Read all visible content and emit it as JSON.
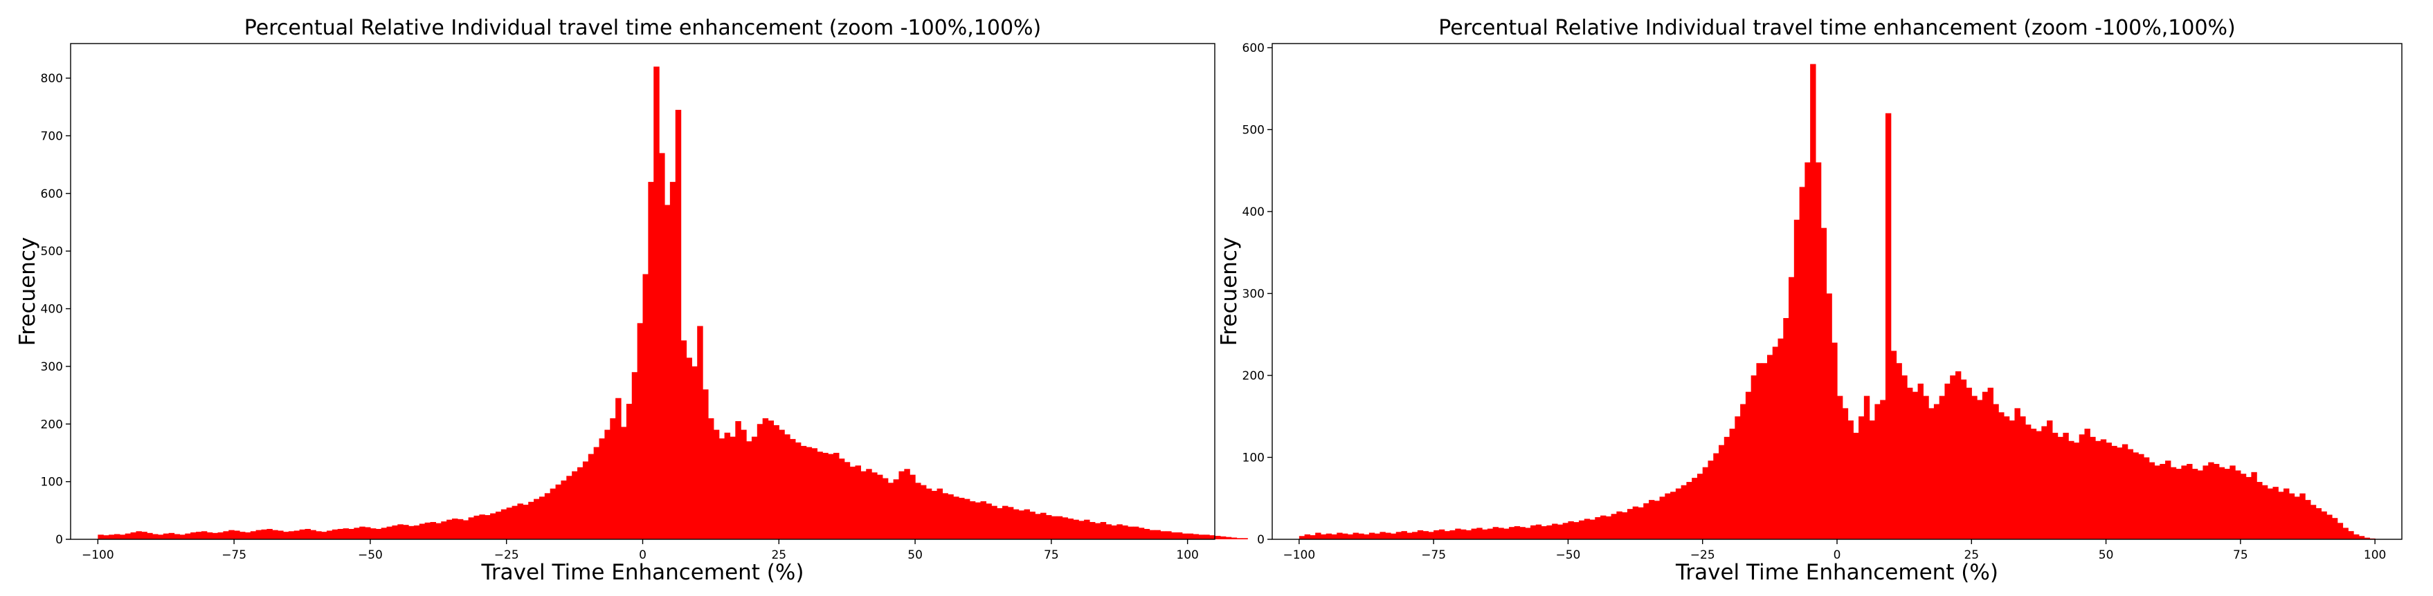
{
  "chart_data": [
    {
      "type": "bar",
      "title": "Percentual Relative Individual travel time enhancement (zoom -100%,100%)",
      "xlabel": "Travel Time Enhancement (%)",
      "ylabel": "Frecuency",
      "xlim": [
        -105,
        105
      ],
      "ylim": [
        0,
        860
      ],
      "xticks": [
        -100,
        -75,
        -50,
        -25,
        0,
        25,
        50,
        75,
        100
      ],
      "yticks": [
        0,
        100,
        200,
        300,
        400,
        500,
        600,
        700,
        800
      ],
      "bar_color": "#ff0000",
      "bin_width": 1,
      "bin_start": -100,
      "values": [
        8,
        7,
        8,
        9,
        8,
        10,
        12,
        14,
        13,
        11,
        9,
        8,
        10,
        11,
        9,
        8,
        10,
        12,
        13,
        14,
        12,
        11,
        12,
        14,
        16,
        15,
        13,
        12,
        14,
        16,
        17,
        18,
        16,
        15,
        13,
        14,
        15,
        17,
        18,
        16,
        14,
        13,
        15,
        17,
        18,
        19,
        18,
        20,
        22,
        21,
        19,
        18,
        20,
        22,
        24,
        26,
        25,
        23,
        24,
        27,
        29,
        30,
        28,
        31,
        34,
        36,
        35,
        33,
        38,
        41,
        43,
        42,
        45,
        48,
        52,
        55,
        58,
        62,
        60,
        65,
        70,
        74,
        80,
        88,
        95,
        102,
        110,
        118,
        125,
        135,
        148,
        160,
        175,
        190,
        210,
        245,
        195,
        235,
        290,
        375,
        460,
        620,
        820,
        670,
        580,
        620,
        745,
        345,
        315,
        300,
        370,
        260,
        210,
        190,
        175,
        185,
        178,
        205,
        190,
        170,
        178,
        200,
        210,
        206,
        198,
        190,
        182,
        174,
        168,
        162,
        160,
        158,
        152,
        150,
        148,
        150,
        140,
        134,
        126,
        128,
        118,
        122,
        116,
        112,
        106,
        98,
        104,
        118,
        122,
        112,
        98,
        94,
        88,
        84,
        88,
        80,
        78,
        74,
        72,
        70,
        66,
        64,
        66,
        62,
        58,
        54,
        58,
        56,
        52,
        50,
        52,
        48,
        44,
        46,
        42,
        40,
        40,
        38,
        36,
        34,
        32,
        34,
        30,
        28,
        30,
        26,
        24,
        26,
        24,
        22,
        22,
        20,
        18,
        16,
        16,
        14,
        14,
        12,
        12,
        10,
        10,
        9,
        8,
        8,
        7,
        6,
        5,
        4,
        3,
        2,
        2
      ]
    },
    {
      "type": "bar",
      "title": "Percentual Relative Individual travel time enhancement (zoom -100%,100%)",
      "xlabel": "Travel Time Enhancement (%)",
      "ylabel": "Frecuency",
      "xlim": [
        -105,
        105
      ],
      "ylim": [
        0,
        605
      ],
      "xticks": [
        -100,
        -75,
        -50,
        -25,
        0,
        25,
        50,
        75,
        100
      ],
      "yticks": [
        0,
        100,
        200,
        300,
        400,
        500,
        600
      ],
      "bar_color": "#ff0000",
      "bin_width": 1,
      "bin_start": -100,
      "values": [
        4,
        6,
        5,
        8,
        6,
        7,
        6,
        8,
        7,
        6,
        8,
        7,
        6,
        8,
        7,
        9,
        8,
        7,
        9,
        10,
        8,
        9,
        11,
        10,
        9,
        11,
        12,
        10,
        11,
        13,
        12,
        11,
        13,
        14,
        12,
        13,
        15,
        14,
        13,
        15,
        16,
        15,
        14,
        17,
        18,
        16,
        17,
        19,
        18,
        20,
        22,
        21,
        23,
        25,
        24,
        27,
        29,
        28,
        31,
        34,
        33,
        37,
        40,
        39,
        44,
        48,
        47,
        52,
        56,
        58,
        62,
        66,
        70,
        75,
        80,
        88,
        96,
        105,
        115,
        125,
        135,
        150,
        165,
        180,
        200,
        215,
        215,
        225,
        235,
        245,
        270,
        320,
        390,
        430,
        460,
        580,
        460,
        380,
        300,
        240,
        175,
        160,
        145,
        130,
        150,
        175,
        145,
        165,
        170,
        520,
        230,
        215,
        200,
        185,
        180,
        190,
        175,
        160,
        165,
        175,
        190,
        200,
        205,
        195,
        185,
        175,
        170,
        180,
        185,
        165,
        155,
        150,
        145,
        160,
        150,
        140,
        135,
        132,
        138,
        145,
        130,
        125,
        130,
        120,
        118,
        128,
        135,
        125,
        120,
        122,
        118,
        114,
        112,
        116,
        110,
        106,
        104,
        100,
        94,
        90,
        92,
        96,
        88,
        86,
        90,
        92,
        86,
        84,
        90,
        94,
        92,
        88,
        86,
        90,
        84,
        80,
        76,
        82,
        70,
        66,
        62,
        64,
        58,
        62,
        56,
        52,
        56,
        48,
        42,
        38,
        34,
        30,
        26,
        20,
        14,
        10,
        6,
        4,
        2,
        1
      ]
    }
  ]
}
